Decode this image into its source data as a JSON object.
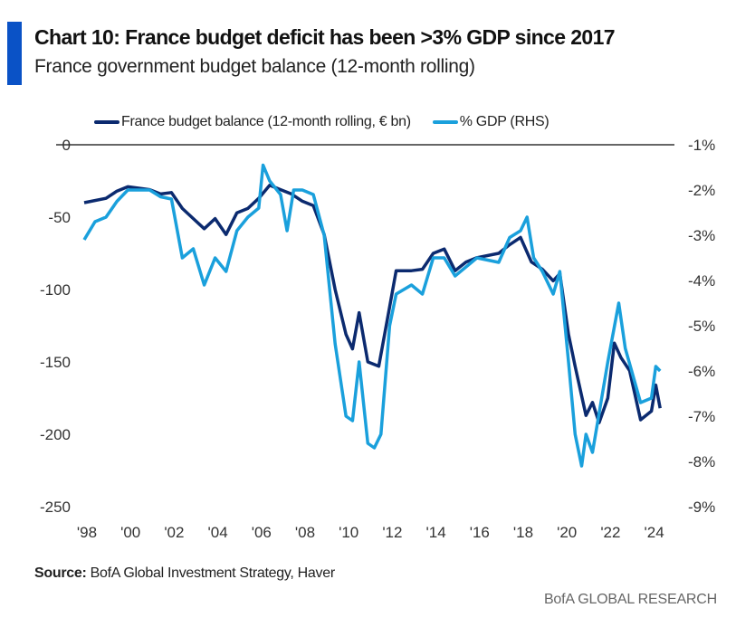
{
  "header": {
    "title": "Chart 10: France budget deficit has been >3% GDP since 2017",
    "subtitle": "France government budget balance (12-month rolling)"
  },
  "footer": {
    "source_label": "Source:",
    "source_text": "BofA Global Investment Strategy, Haver",
    "brand": "BofA GLOBAL RESEARCH"
  },
  "colors": {
    "accent": "#0a52c6",
    "dark_series": "#0b2a6f",
    "light_series": "#1aa0dc"
  },
  "chart_data": {
    "type": "line",
    "title": "Chart 10: France budget deficit has been >3% GDP since 2017",
    "legend_position": "top",
    "grid": false,
    "x_ticks": [
      "'98",
      "'00",
      "'02",
      "'04",
      "'06",
      "'08",
      "'10",
      "'12",
      "'14",
      "'16",
      "'18",
      "'20",
      "'22",
      "'24"
    ],
    "x_tick_values": [
      1998,
      2000,
      2002,
      2004,
      2006,
      2008,
      2010,
      2012,
      2014,
      2016,
      2018,
      2020,
      2022,
      2024
    ],
    "xlim": [
      1997.9,
      2024.6
    ],
    "y_left": {
      "ticks": [
        "0",
        "-50",
        "-100",
        "-150",
        "-200",
        "-250"
      ],
      "tick_values": [
        0,
        -50,
        -100,
        -150,
        -200,
        -250
      ],
      "ylim": [
        -250,
        0
      ]
    },
    "y_right": {
      "ticks": [
        "-1%",
        "-2%",
        "-3%",
        "-4%",
        "-5%",
        "-6%",
        "-7%",
        "-8%",
        "-9%"
      ],
      "tick_values": [
        -1,
        -2,
        -3,
        -4,
        -5,
        -6,
        -7,
        -8,
        -9
      ],
      "ylim": [
        -9,
        -1
      ]
    },
    "series": [
      {
        "name": "France budget balance (12-month rolling, € bn)",
        "axis": "left",
        "color": "#0b2a6f",
        "x": [
          1998,
          1999,
          1999.5,
          2000,
          2001,
          2001.5,
          2002,
          2002.5,
          2003,
          2003.5,
          2004,
          2004.5,
          2005,
          2005.5,
          2006,
          2006.5,
          2007,
          2007.5,
          2008,
          2008.5,
          2009,
          2009.5,
          2010,
          2010.3,
          2010.6,
          2011,
          2011.5,
          2012,
          2012.3,
          2013,
          2013.5,
          2014,
          2014.5,
          2015,
          2015.5,
          2016,
          2017,
          2017.5,
          2018,
          2018.5,
          2019,
          2019.5,
          2019.8,
          2020.2,
          2020.5,
          2021,
          2021.3,
          2021.6,
          2022,
          2022.3,
          2022.6,
          2023,
          2023.5,
          2024,
          2024.2,
          2024.4
        ],
        "values": [
          -40,
          -37,
          -32,
          -29,
          -31,
          -34,
          -33,
          -44,
          -51,
          -58,
          -51,
          -62,
          -47,
          -44,
          -37,
          -28,
          -31,
          -34,
          -39,
          -42,
          -62,
          -100,
          -131,
          -141,
          -116,
          -150,
          -153,
          -112,
          -87,
          -87,
          -86,
          -75,
          -72,
          -87,
          -81,
          -78,
          -75,
          -69,
          -64,
          -81,
          -86,
          -94,
          -89,
          -131,
          -153,
          -187,
          -178,
          -192,
          -175,
          -137,
          -147,
          -156,
          -190,
          -184,
          -166,
          -182
        ]
      },
      {
        "name": "% GDP (RHS)",
        "axis": "right",
        "color": "#1aa0dc",
        "x": [
          1998,
          1998.5,
          1999,
          1999.5,
          2000,
          2001,
          2001.5,
          2002,
          2002.5,
          2003,
          2003.5,
          2004,
          2004.5,
          2005,
          2005.5,
          2006,
          2006.2,
          2006.5,
          2007,
          2007.3,
          2007.6,
          2008,
          2008.5,
          2009,
          2009.5,
          2010,
          2010.3,
          2010.6,
          2011,
          2011.3,
          2011.6,
          2012,
          2012.3,
          2013,
          2013.5,
          2014,
          2014.5,
          2015,
          2015.5,
          2016,
          2017,
          2017.5,
          2018,
          2018.3,
          2018.6,
          2019,
          2019.5,
          2019.8,
          2020.2,
          2020.5,
          2020.8,
          2021,
          2021.3,
          2022,
          2022.5,
          2022.8,
          2023.5,
          2024,
          2024.2,
          2024.4
        ],
        "values": [
          -3.1,
          -2.7,
          -2.6,
          -2.25,
          -2.0,
          -2.0,
          -2.15,
          -2.2,
          -3.5,
          -3.3,
          -4.1,
          -3.5,
          -3.8,
          -2.9,
          -2.6,
          -2.4,
          -1.45,
          -1.8,
          -2.1,
          -2.9,
          -2.0,
          -2.0,
          -2.1,
          -3.0,
          -5.4,
          -7.0,
          -7.1,
          -5.8,
          -7.6,
          -7.7,
          -7.4,
          -5.0,
          -4.3,
          -4.1,
          -4.3,
          -3.5,
          -3.5,
          -3.9,
          -3.7,
          -3.5,
          -3.6,
          -3.05,
          -2.9,
          -2.6,
          -3.5,
          -3.8,
          -4.3,
          -3.8,
          -5.8,
          -7.4,
          -8.1,
          -7.4,
          -7.8,
          -5.8,
          -4.5,
          -5.5,
          -6.7,
          -6.6,
          -5.9,
          -6.0
        ]
      }
    ]
  }
}
